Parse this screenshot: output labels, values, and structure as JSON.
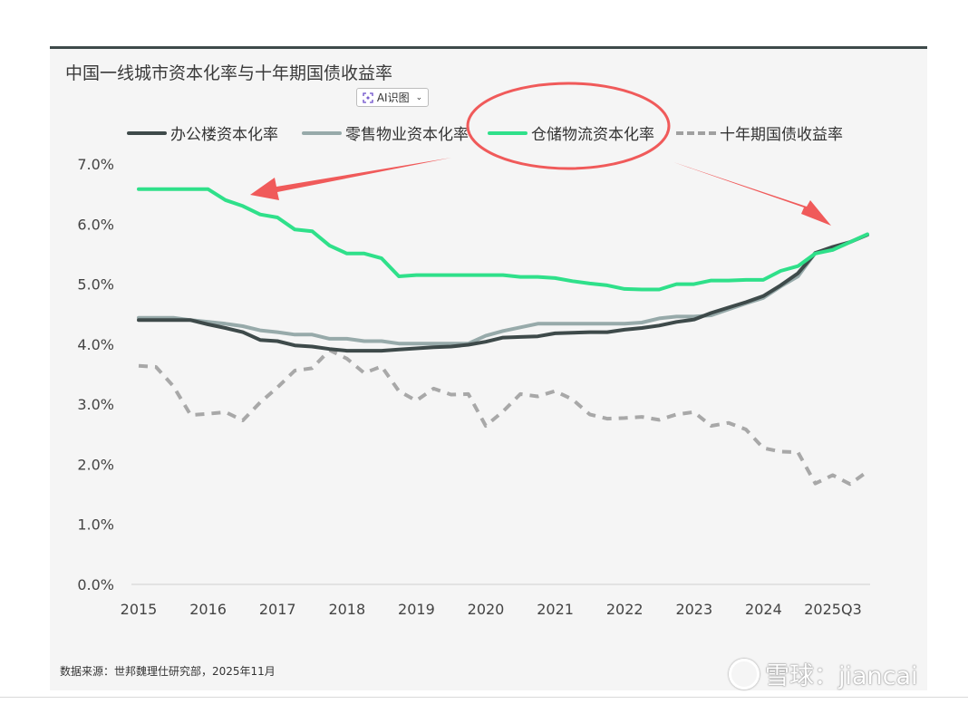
{
  "page": {
    "title": "中国一线城市资本化率与十年期国债收益率",
    "ai_button_label": "AI识图",
    "source": "数据来源：世邦魏理仕研究部，2025年11月",
    "watermark": "雪球：jiancai"
  },
  "colors": {
    "office": "#3e4a4a",
    "retail": "#97aaaa",
    "logistics": "#2fe08a",
    "bond": "#a8a8a8",
    "annotation": "#f05a5a"
  },
  "icons": [
    "ai-scan-icon",
    "chevron-down-icon",
    "xueqiu-logo-icon"
  ],
  "chart_data": {
    "type": "line",
    "title": "中国一线城市资本化率与十年期国债收益率",
    "ylim": [
      0,
      7
    ],
    "yticks": [
      "0.0%",
      "1.0%",
      "2.0%",
      "3.0%",
      "4.0%",
      "5.0%",
      "6.0%",
      "7.0%"
    ],
    "xticks": [
      "2015",
      "2016",
      "2017",
      "2018",
      "2019",
      "2020",
      "2021",
      "2022",
      "2023",
      "2024",
      "2025Q3"
    ],
    "xlim": [
      0,
      43
    ],
    "grid": false,
    "legend_position": "top",
    "series": [
      {
        "name": "办公楼资本化率",
        "key": "office",
        "style": "solid",
        "values": [
          4.4,
          4.4,
          4.4,
          4.4,
          4.33,
          4.27,
          4.2,
          4.07,
          4.05,
          3.98,
          3.96,
          3.92,
          3.89,
          3.89,
          3.89,
          3.91,
          3.93,
          3.95,
          3.96,
          3.99,
          4.04,
          4.11,
          4.12,
          4.13,
          4.18,
          4.19,
          4.2,
          4.2,
          4.24,
          4.27,
          4.31,
          4.37,
          4.41,
          4.52,
          4.61,
          4.7,
          4.8,
          4.98,
          5.18,
          5.52,
          5.62,
          5.7,
          5.82
        ]
      },
      {
        "name": "零售物业资本化率",
        "key": "retail",
        "style": "solid",
        "values": [
          4.44,
          4.44,
          4.44,
          4.4,
          4.37,
          4.34,
          4.3,
          4.23,
          4.2,
          4.16,
          4.16,
          4.09,
          4.09,
          4.05,
          4.05,
          4.01,
          4.01,
          4.01,
          4.01,
          4.01,
          4.14,
          4.22,
          4.28,
          4.34,
          4.34,
          4.34,
          4.34,
          4.34,
          4.34,
          4.36,
          4.43,
          4.46,
          4.46,
          4.48,
          4.58,
          4.68,
          4.77,
          4.96,
          5.13,
          5.52,
          5.57,
          5.7,
          5.83
        ]
      },
      {
        "name": "仓储物流资本化率",
        "key": "logistics",
        "style": "solid",
        "values": [
          6.58,
          6.58,
          6.58,
          6.58,
          6.58,
          6.4,
          6.3,
          6.16,
          6.11,
          5.91,
          5.88,
          5.64,
          5.51,
          5.51,
          5.43,
          5.13,
          5.15,
          5.15,
          5.15,
          5.15,
          5.15,
          5.15,
          5.12,
          5.12,
          5.1,
          5.05,
          5.01,
          4.98,
          4.92,
          4.91,
          4.91,
          5.0,
          5.0,
          5.06,
          5.06,
          5.07,
          5.07,
          5.22,
          5.3,
          5.51,
          5.57,
          5.7,
          5.83
        ]
      },
      {
        "name": "十年期国债收益率",
        "key": "bond",
        "style": "dashed",
        "values": [
          3.64,
          3.62,
          3.3,
          2.82,
          2.84,
          2.87,
          2.73,
          3.03,
          3.28,
          3.56,
          3.6,
          3.9,
          3.76,
          3.52,
          3.63,
          3.22,
          3.06,
          3.26,
          3.16,
          3.17,
          2.64,
          2.88,
          3.17,
          3.13,
          3.22,
          3.08,
          2.83,
          2.76,
          2.77,
          2.79,
          2.74,
          2.83,
          2.87,
          2.64,
          2.69,
          2.58,
          2.27,
          2.21,
          2.2,
          1.68,
          1.82,
          1.67,
          1.88
        ]
      }
    ]
  }
}
